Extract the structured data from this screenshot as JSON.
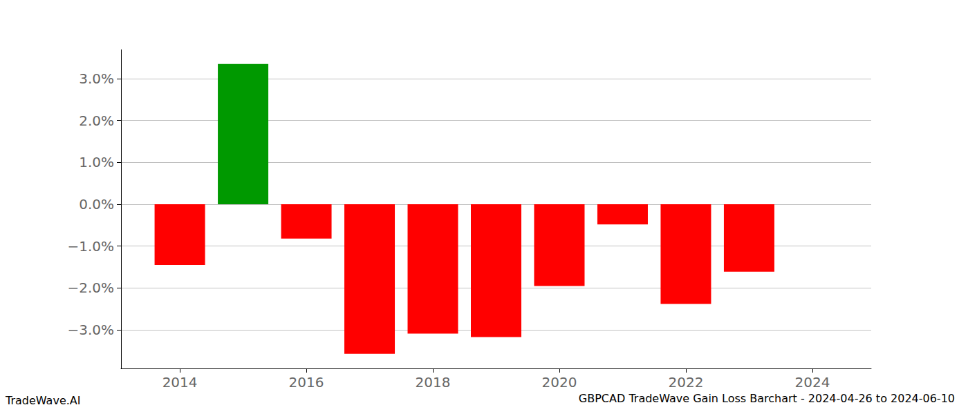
{
  "chart_data": {
    "type": "bar",
    "title": "GBPCAD TradeWave Gain Loss Barchart - 2024-04-26 to 2024-06-10",
    "annotations": [
      "TradeWave.AI"
    ],
    "x": [
      2014,
      2015,
      2016,
      2017,
      2018,
      2019,
      2020,
      2021,
      2022,
      2023
    ],
    "values": [
      -1.45,
      3.35,
      -0.82,
      -3.57,
      -3.09,
      -3.17,
      -1.95,
      -0.48,
      -2.38,
      -1.61
    ],
    "colors": [
      "#ff0000",
      "#009900",
      "#ff0000",
      "#ff0000",
      "#ff0000",
      "#ff0000",
      "#ff0000",
      "#ff0000",
      "#ff0000",
      "#ff0000"
    ],
    "xlim": [
      2013.07,
      2024.93
    ],
    "xticks": [
      2014,
      2016,
      2018,
      2020,
      2022,
      2024
    ],
    "ylim": [
      -3.92,
      3.69
    ],
    "yticks": [
      {
        "value": -3,
        "label": "−3.0%"
      },
      {
        "value": -2,
        "label": "−2.0%"
      },
      {
        "value": -1,
        "label": "−1.0%"
      },
      {
        "value": 0,
        "label": "0.0%"
      },
      {
        "value": 1,
        "label": "1.0%"
      },
      {
        "value": 2,
        "label": "2.0%"
      },
      {
        "value": 3,
        "label": "3.0%"
      }
    ],
    "grid": true
  }
}
